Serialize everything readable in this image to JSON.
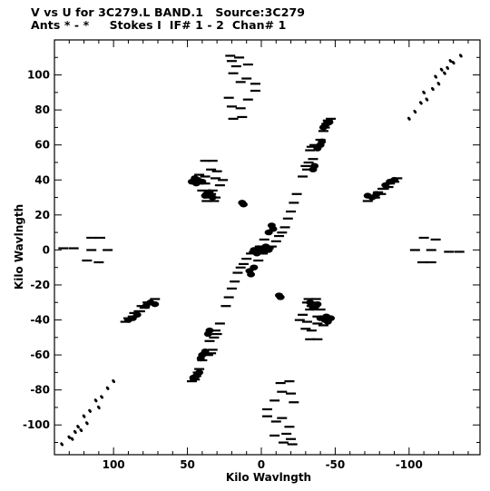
{
  "chart_data": {
    "type": "scatter",
    "title": "V vs U for 3C279.L BAND.1   Source:3C279",
    "subtitle": "Ants * - *     Stokes I  IF# 1 - 2  Chan# 1",
    "xlabel": "Kilo Wavlngth",
    "ylabel": "Kilo Wavlngth",
    "xlim": [
      140,
      -148
    ],
    "ylim": [
      -117,
      120
    ],
    "x_reversed": true,
    "grid": false,
    "xticks": [
      100,
      50,
      0,
      -50,
      -100
    ],
    "xtick_labels": [
      "100",
      "50",
      "0",
      "-50",
      "-100"
    ],
    "yticks": [
      100,
      80,
      60,
      40,
      20,
      0,
      -20,
      -40,
      -60,
      -80,
      -100
    ],
    "ytick_labels": [
      "100",
      "80",
      "60",
      "40",
      "20",
      "0",
      "-20",
      "-40",
      "-60",
      "-80",
      "-100"
    ],
    "series": [
      {
        "marker": "short-dash",
        "points": [
          [
            21,
            111
          ],
          [
            15,
            110
          ],
          [
            20,
            108
          ],
          [
            17,
            105
          ],
          [
            9,
            106
          ],
          [
            19,
            101
          ],
          [
            10,
            98
          ],
          [
            14,
            96
          ],
          [
            4,
            95
          ],
          [
            4,
            91
          ],
          [
            9,
            86
          ],
          [
            22,
            87
          ],
          [
            14,
            81
          ],
          [
            20,
            82
          ],
          [
            13,
            76
          ],
          [
            19,
            75
          ],
          [
            -21,
            -111
          ],
          [
            -15,
            -110
          ],
          [
            -20,
            -108
          ],
          [
            -17,
            -105
          ],
          [
            -9,
            -106
          ],
          [
            -19,
            -101
          ],
          [
            -10,
            -98
          ],
          [
            -14,
            -96
          ],
          [
            -4,
            -95
          ],
          [
            -4,
            -91
          ],
          [
            -9,
            -86
          ],
          [
            -22,
            -87
          ],
          [
            -14,
            -81
          ],
          [
            -20,
            -82
          ],
          [
            -13,
            -76
          ],
          [
            -19,
            -75
          ],
          [
            134,
            1
          ],
          [
            127,
            1
          ],
          [
            115,
            7
          ],
          [
            109,
            7
          ],
          [
            115,
            0
          ],
          [
            104,
            0
          ],
          [
            118,
            -6
          ],
          [
            110,
            -7
          ],
          [
            -134,
            -1
          ],
          [
            -127,
            -1
          ],
          [
            -115,
            -7
          ],
          [
            -109,
            -7
          ],
          [
            -115,
            0
          ],
          [
            -104,
            0
          ],
          [
            -118,
            6
          ],
          [
            -110,
            7
          ],
          [
            38,
            51
          ],
          [
            33,
            51
          ],
          [
            34,
            46
          ],
          [
            30,
            45
          ],
          [
            42,
            43
          ],
          [
            38,
            42
          ],
          [
            31,
            41
          ],
          [
            26,
            40
          ],
          [
            44,
            39
          ],
          [
            38,
            38
          ],
          [
            28,
            37
          ],
          [
            40,
            34
          ],
          [
            33,
            34
          ],
          [
            34,
            32
          ],
          [
            36,
            30
          ],
          [
            31,
            30
          ],
          [
            37,
            28
          ],
          [
            32,
            28
          ],
          [
            -38,
            -51
          ],
          [
            -33,
            -51
          ],
          [
            -34,
            -46
          ],
          [
            -30,
            -45
          ],
          [
            -42,
            -43
          ],
          [
            -38,
            -42
          ],
          [
            -31,
            -41
          ],
          [
            -26,
            -40
          ],
          [
            -44,
            -39
          ],
          [
            -38,
            -38
          ],
          [
            -28,
            -37
          ],
          [
            -40,
            -34
          ],
          [
            -33,
            -34
          ],
          [
            -34,
            -32
          ],
          [
            -36,
            -30
          ],
          [
            -31,
            -30
          ],
          [
            -37,
            -28
          ],
          [
            -32,
            -28
          ],
          [
            -72,
            28
          ],
          [
            -76,
            30
          ],
          [
            -79,
            33
          ],
          [
            -83,
            35
          ],
          [
            -87,
            38
          ],
          [
            -92,
            41
          ],
          [
            -75,
            31
          ],
          [
            -82,
            35
          ],
          [
            -86,
            36
          ],
          [
            -90,
            39
          ],
          [
            -77,
            30
          ],
          [
            -81,
            32
          ],
          [
            72,
            -28
          ],
          [
            76,
            -30
          ],
          [
            79,
            -33
          ],
          [
            83,
            -35
          ],
          [
            87,
            -38
          ],
          [
            92,
            -41
          ],
          [
            75,
            -31
          ],
          [
            82,
            -35
          ],
          [
            86,
            -36
          ],
          [
            90,
            -39
          ],
          [
            77,
            -30
          ],
          [
            81,
            -32
          ],
          [
            -33,
            57
          ],
          [
            -34,
            59
          ],
          [
            -36,
            60
          ],
          [
            -40,
            63
          ],
          [
            -42,
            68
          ],
          [
            -43,
            70
          ],
          [
            -44,
            72
          ],
          [
            -45,
            74
          ],
          [
            -47,
            75
          ],
          [
            -31,
            46
          ],
          [
            -30,
            48
          ],
          [
            -32,
            50
          ],
          [
            -35,
            52
          ],
          [
            -28,
            42
          ],
          [
            -24,
            32
          ],
          [
            -22,
            27
          ],
          [
            -20,
            22
          ],
          [
            -18,
            18
          ],
          [
            -16,
            13
          ],
          [
            -14,
            10
          ],
          [
            -12,
            8
          ],
          [
            -10,
            5
          ],
          [
            -7,
            2
          ],
          [
            -5,
            1
          ],
          [
            -3,
            0
          ],
          [
            -1,
            -2
          ],
          [
            2,
            -6
          ],
          [
            33,
            -57
          ],
          [
            34,
            -59
          ],
          [
            36,
            -60
          ],
          [
            40,
            -63
          ],
          [
            42,
            -68
          ],
          [
            43,
            -70
          ],
          [
            44,
            -72
          ],
          [
            45,
            -74
          ],
          [
            47,
            -75
          ],
          [
            31,
            -46
          ],
          [
            30,
            -48
          ],
          [
            32,
            -50
          ],
          [
            35,
            -52
          ],
          [
            28,
            -42
          ],
          [
            24,
            -32
          ],
          [
            22,
            -27
          ],
          [
            20,
            -22
          ],
          [
            18,
            -18
          ],
          [
            16,
            -13
          ],
          [
            14,
            -10
          ],
          [
            12,
            -8
          ],
          [
            10,
            -5
          ],
          [
            7,
            -2
          ],
          [
            5,
            -1
          ],
          [
            3,
            0
          ],
          [
            1,
            2
          ],
          [
            -2,
            6
          ]
        ]
      },
      {
        "marker": "dot",
        "points": [
          [
            -100,
            75
          ],
          [
            -104,
            79
          ],
          [
            -108,
            84
          ],
          [
            -112,
            86
          ],
          [
            -110,
            90
          ],
          [
            -116,
            92
          ],
          [
            -120,
            95
          ],
          [
            -118,
            99
          ],
          [
            -124,
            101
          ],
          [
            -126,
            104
          ],
          [
            -122,
            103
          ],
          [
            -130,
            107
          ],
          [
            -128,
            108
          ],
          [
            -135,
            111
          ],
          [
            100,
            -75
          ],
          [
            104,
            -79
          ],
          [
            108,
            -84
          ],
          [
            112,
            -86
          ],
          [
            110,
            -90
          ],
          [
            116,
            -92
          ],
          [
            120,
            -95
          ],
          [
            118,
            -99
          ],
          [
            124,
            -101
          ],
          [
            126,
            -104
          ],
          [
            122,
            -103
          ],
          [
            130,
            -107
          ],
          [
            128,
            -108
          ],
          [
            135,
            -111
          ]
        ]
      },
      {
        "marker": "blob",
        "points": [
          [
            45,
            41
          ],
          [
            43,
            40
          ],
          [
            47,
            39
          ],
          [
            44,
            38
          ],
          [
            40,
            39
          ],
          [
            35,
            33
          ],
          [
            37,
            32
          ],
          [
            38,
            31
          ],
          [
            33,
            30
          ],
          [
            -45,
            -41
          ],
          [
            -43,
            -40
          ],
          [
            -47,
            -39
          ],
          [
            -44,
            -38
          ],
          [
            -40,
            -39
          ],
          [
            -35,
            -33
          ],
          [
            -37,
            -32
          ],
          [
            -38,
            -31
          ],
          [
            -33,
            -30
          ],
          [
            -87,
            39
          ],
          [
            -84,
            37
          ],
          [
            -90,
            40
          ],
          [
            -72,
            31
          ],
          [
            -75,
            30
          ],
          [
            -78,
            32
          ],
          [
            87,
            -39
          ],
          [
            84,
            -37
          ],
          [
            90,
            -40
          ],
          [
            72,
            -31
          ],
          [
            75,
            -30
          ],
          [
            78,
            -32
          ],
          [
            -38,
            58
          ],
          [
            -40,
            60
          ],
          [
            -41,
            62
          ],
          [
            -42,
            70
          ],
          [
            -44,
            72
          ],
          [
            -46,
            73
          ],
          [
            -35,
            46
          ],
          [
            -36,
            48
          ],
          [
            -7,
            14
          ],
          [
            -8,
            12
          ],
          [
            -5,
            10
          ],
          [
            -4,
            1
          ],
          [
            -3,
            2
          ],
          [
            -5,
            0
          ],
          [
            -1,
            0
          ],
          [
            -2,
            -1
          ],
          [
            38,
            -58
          ],
          [
            40,
            -60
          ],
          [
            41,
            -62
          ],
          [
            42,
            -70
          ],
          [
            44,
            -72
          ],
          [
            46,
            -73
          ],
          [
            35,
            -46
          ],
          [
            36,
            -48
          ],
          [
            7,
            -14
          ],
          [
            8,
            -12
          ],
          [
            5,
            -10
          ],
          [
            4,
            -1
          ],
          [
            3,
            -2
          ],
          [
            5,
            0
          ],
          [
            1,
            0
          ],
          [
            2,
            1
          ],
          [
            -12,
            -26
          ],
          [
            -13,
            -27
          ],
          [
            12,
            26
          ],
          [
            13,
            27
          ]
        ]
      }
    ]
  }
}
